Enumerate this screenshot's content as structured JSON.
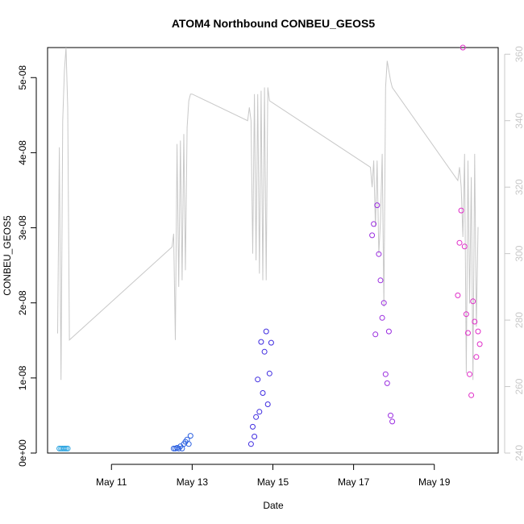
{
  "chart_data": {
    "type": "scatter",
    "title": "ATOM4 Northbound CONBEU_GEOS5",
    "xlabel": "Date",
    "ylabel": "CONBEU_GEOS5",
    "xlim": [
      "2016-05-09T10:00",
      "2016-05-20T14:00"
    ],
    "ylim": [
      0,
      5.4e-08
    ],
    "y2lim": [
      240,
      362
    ],
    "x_ticks": [
      {
        "date": "2016-05-11T00:00",
        "label": "May 11"
      },
      {
        "date": "2016-05-13T00:00",
        "label": "May 13"
      },
      {
        "date": "2016-05-15T00:00",
        "label": "May 15"
      },
      {
        "date": "2016-05-17T00:00",
        "label": "May 17"
      },
      {
        "date": "2016-05-19T00:00",
        "label": "May 19"
      }
    ],
    "y_ticks": [
      {
        "value": 0,
        "label": "0e+00"
      },
      {
        "value": 1e-08,
        "label": "1e-08"
      },
      {
        "value": 2e-08,
        "label": "2e-08"
      },
      {
        "value": 3e-08,
        "label": "3e-08"
      },
      {
        "value": 4e-08,
        "label": "4e-08"
      },
      {
        "value": 5e-08,
        "label": "5e-08"
      }
    ],
    "y2_ticks": [
      {
        "value": 240,
        "label": "240"
      },
      {
        "value": 260,
        "label": "260"
      },
      {
        "value": 280,
        "label": "280"
      },
      {
        "value": 300,
        "label": "300"
      },
      {
        "value": 320,
        "label": "320"
      },
      {
        "value": 340,
        "label": "340"
      },
      {
        "value": 360,
        "label": "360"
      }
    ],
    "grid": false,
    "series": [
      {
        "color": "#29a3e0",
        "marker": "open-circle",
        "x": [
          "2016-05-09T17:00",
          "2016-05-09T18:00",
          "2016-05-09T19:00",
          "2016-05-09T20:00",
          "2016-05-09T21:00",
          "2016-05-09T22:00"
        ],
        "y": [
          6e-10,
          6e-10,
          6e-10,
          6e-10,
          6e-10,
          6e-10
        ]
      },
      {
        "color": "#2a5fe0",
        "marker": "open-circle",
        "x": [
          "2016-05-12T13:00",
          "2016-05-12T14:00",
          "2016-05-12T15:00",
          "2016-05-12T16:00",
          "2016-05-12T17:00",
          "2016-05-12T18:00",
          "2016-05-12T19:00",
          "2016-05-12T20:00",
          "2016-05-12T21:00",
          "2016-05-12T22:00",
          "2016-05-12T23:00"
        ],
        "y": [
          6e-10,
          6e-10,
          7e-10,
          6e-10,
          9e-10,
          6e-10,
          1.2e-09,
          1.5e-09,
          1.8e-09,
          1.2e-09,
          2.3e-09
        ]
      },
      {
        "color": "#3f2ce0",
        "marker": "open-circle",
        "x": [
          "2016-05-14T11:00",
          "2016-05-14T12:00",
          "2016-05-14T13:00",
          "2016-05-14T14:00",
          "2016-05-14T15:00",
          "2016-05-14T16:00",
          "2016-05-14T17:00",
          "2016-05-14T18:00",
          "2016-05-14T19:00",
          "2016-05-14T20:00",
          "2016-05-14T21:00",
          "2016-05-14T22:00",
          "2016-05-14T23:00"
        ],
        "y": [
          1.2e-09,
          3.5e-09,
          2.2e-09,
          4.8e-09,
          9.8e-09,
          5.5e-09,
          1.48e-08,
          8e-09,
          1.35e-08,
          1.62e-08,
          6.5e-09,
          1.06e-08,
          1.47e-08
        ]
      },
      {
        "color": "#9a2ce0",
        "marker": "open-circle",
        "x": [
          "2016-05-17T11:00",
          "2016-05-17T12:00",
          "2016-05-17T13:00",
          "2016-05-17T14:00",
          "2016-05-17T15:00",
          "2016-05-17T16:00",
          "2016-05-17T17:00",
          "2016-05-17T18:00",
          "2016-05-17T19:00",
          "2016-05-17T20:00",
          "2016-05-17T21:00",
          "2016-05-17T22:00",
          "2016-05-17T23:00"
        ],
        "y": [
          2.9e-08,
          3.05e-08,
          1.58e-08,
          3.3e-08,
          2.65e-08,
          2.3e-08,
          1.8e-08,
          2e-08,
          1.05e-08,
          9.3e-09,
          1.62e-08,
          5e-09,
          4.2e-09
        ]
      },
      {
        "color": "#e02cc8",
        "marker": "open-circle",
        "x": [
          "2016-05-19T14:00",
          "2016-05-19T15:00",
          "2016-05-19T16:00",
          "2016-05-19T17:00",
          "2016-05-19T18:00",
          "2016-05-19T19:00",
          "2016-05-19T20:00",
          "2016-05-19T21:00",
          "2016-05-19T22:00",
          "2016-05-19T23:00",
          "2016-05-20T00:00",
          "2016-05-20T01:00",
          "2016-05-20T02:00",
          "2016-05-20T03:00"
        ],
        "y": [
          2.1e-08,
          2.8e-08,
          3.23e-08,
          5.4e-08,
          2.75e-08,
          1.85e-08,
          1.6e-08,
          1.05e-08,
          7.7e-09,
          2.02e-08,
          1.75e-08,
          1.28e-08,
          1.62e-08,
          1.45e-08
        ]
      }
    ],
    "secondary_line": {
      "color": "#c8c8c8",
      "axis": "right",
      "x": [
        "2016-05-09T16:00",
        "2016-05-09T17:00",
        "2016-05-09T18:00",
        "2016-05-09T19:00",
        "2016-05-09T20:00",
        "2016-05-09T21:00",
        "2016-05-09T22:00",
        "2016-05-09T23:00",
        "2016-05-12T12:00",
        "2016-05-12T13:00",
        "2016-05-12T14:00",
        "2016-05-12T15:00",
        "2016-05-12T16:00",
        "2016-05-12T17:00",
        "2016-05-12T18:00",
        "2016-05-12T19:00",
        "2016-05-12T20:00",
        "2016-05-12T21:00",
        "2016-05-12T22:00",
        "2016-05-12T23:00",
        "2016-05-13T00:00",
        "2016-05-14T09:00",
        "2016-05-14T10:00",
        "2016-05-14T11:00",
        "2016-05-14T12:00",
        "2016-05-14T13:00",
        "2016-05-14T14:00",
        "2016-05-14T15:00",
        "2016-05-14T16:00",
        "2016-05-14T17:00",
        "2016-05-14T18:00",
        "2016-05-14T19:00",
        "2016-05-14T20:00",
        "2016-05-14T21:00",
        "2016-05-14T22:00",
        "2016-05-17T10:00",
        "2016-05-17T11:00",
        "2016-05-17T12:00",
        "2016-05-17T13:00",
        "2016-05-17T14:00",
        "2016-05-17T15:00",
        "2016-05-17T16:00",
        "2016-05-17T17:00",
        "2016-05-17T18:00",
        "2016-05-17T19:00",
        "2016-05-17T20:00",
        "2016-05-17T21:00",
        "2016-05-17T22:00",
        "2016-05-17T23:00",
        "2016-05-19T14:00",
        "2016-05-19T15:00",
        "2016-05-19T16:00",
        "2016-05-19T17:00",
        "2016-05-19T18:00",
        "2016-05-19T19:00",
        "2016-05-19T20:00",
        "2016-05-19T21:00",
        "2016-05-19T22:00",
        "2016-05-19T23:00",
        "2016-05-20T00:00",
        "2016-05-20T01:00",
        "2016-05-20T02:00"
      ],
      "y": [
        276,
        332,
        262,
        340,
        355,
        362,
        344,
        274,
        302,
        306,
        274,
        333,
        290,
        334,
        292,
        336,
        295,
        338,
        346,
        348,
        348,
        340,
        344,
        340,
        300,
        348,
        298,
        348,
        294,
        349,
        292,
        350,
        292,
        350,
        346,
        326,
        320,
        328,
        308,
        328,
        300,
        310,
        330,
        284,
        350,
        358,
        355,
        352,
        350,
        322,
        326,
        320,
        305,
        330,
        264,
        328,
        285,
        323,
        262,
        330,
        278,
        308
      ]
    }
  }
}
